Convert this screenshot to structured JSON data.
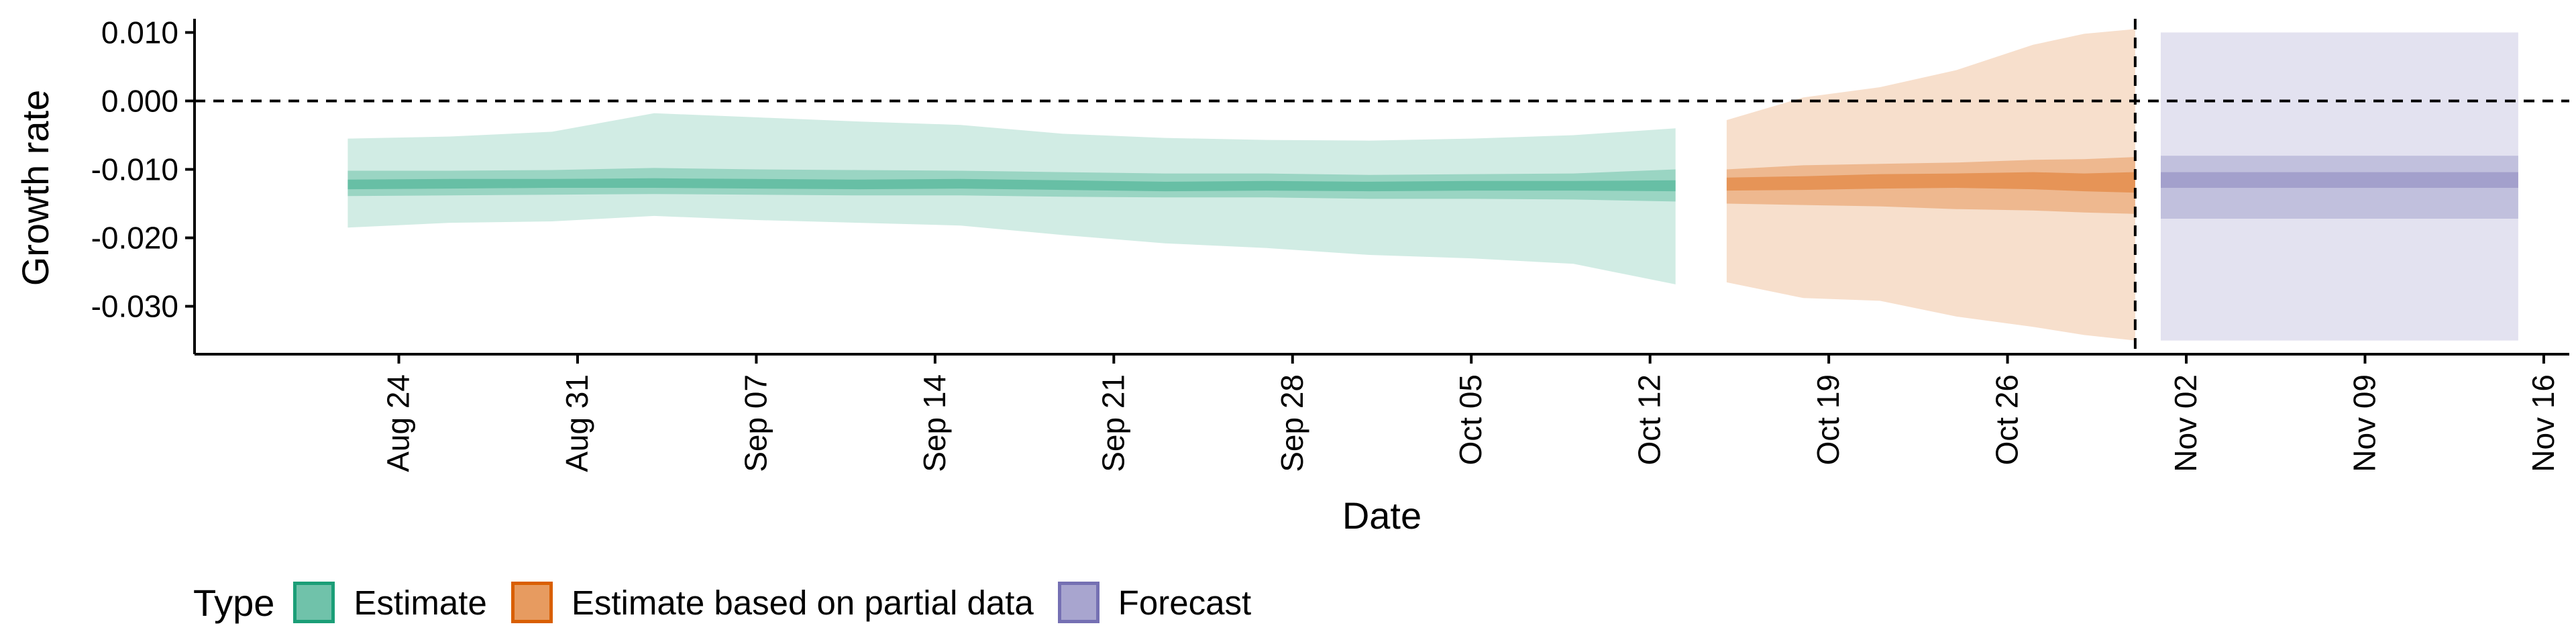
{
  "chart_data": {
    "type": "area",
    "title": "",
    "xlabel": "Date",
    "ylabel": "Growth rate",
    "x_range": [
      "2021-08-16",
      "2021-11-17"
    ],
    "ylim": [
      -0.037,
      0.012
    ],
    "y_ticks": [
      -0.03,
      -0.02,
      -0.01,
      0.0,
      0.01
    ],
    "y_tick_labels": [
      "-0.030",
      "-0.020",
      "-0.010",
      "0.000",
      "0.010"
    ],
    "x_ticks": [
      "2021-08-24",
      "2021-08-31",
      "2021-09-07",
      "2021-09-14",
      "2021-09-21",
      "2021-09-28",
      "2021-10-05",
      "2021-10-12",
      "2021-10-19",
      "2021-10-26",
      "2021-11-02",
      "2021-11-09",
      "2021-11-16"
    ],
    "x_tick_labels": [
      "Aug 24",
      "Aug 31",
      "Sep 07",
      "Sep 14",
      "Sep 21",
      "Sep 28",
      "Oct 05",
      "Oct 12",
      "Oct 19",
      "Oct 26",
      "Nov 02",
      "Nov 09",
      "Nov 16"
    ],
    "reference_lines": [
      {
        "axis": "y",
        "value": 0.0,
        "style": "dashed"
      },
      {
        "axis": "x",
        "value": "2021-10-31",
        "style": "dashed"
      }
    ],
    "grid": false,
    "legend": {
      "title": "Type",
      "position": "bottom-left",
      "items": [
        {
          "label": "Estimate",
          "color": "#1b9e77"
        },
        {
          "label": "Estimate based on partial data",
          "color": "#d95f02"
        },
        {
          "label": "Forecast",
          "color": "#7570b3"
        }
      ]
    },
    "series": [
      {
        "name": "Estimate",
        "color": "#1b9e77",
        "points": [
          {
            "x": "2021-08-22",
            "median": -0.0122,
            "lo90": -0.0185,
            "hi90": -0.0055,
            "lo50": -0.0139,
            "hi50": -0.0102,
            "lo20": -0.0129,
            "hi20": -0.0115
          },
          {
            "x": "2021-08-26",
            "median": -0.0122,
            "lo90": -0.0178,
            "hi90": -0.0052,
            "lo50": -0.0138,
            "hi50": -0.0102,
            "lo20": -0.0128,
            "hi20": -0.0114
          },
          {
            "x": "2021-08-30",
            "median": -0.0121,
            "lo90": -0.0176,
            "hi90": -0.0045,
            "lo50": -0.0137,
            "hi50": -0.0101,
            "lo20": -0.0127,
            "hi20": -0.0114
          },
          {
            "x": "2021-09-03",
            "median": -0.012,
            "lo90": -0.0168,
            "hi90": -0.0018,
            "lo50": -0.0136,
            "hi50": -0.0098,
            "lo20": -0.0127,
            "hi20": -0.0113
          },
          {
            "x": "2021-09-07",
            "median": -0.0121,
            "lo90": -0.0174,
            "hi90": -0.0024,
            "lo50": -0.0137,
            "hi50": -0.01,
            "lo20": -0.0128,
            "hi20": -0.0114
          },
          {
            "x": "2021-09-11",
            "median": -0.0122,
            "lo90": -0.0178,
            "hi90": -0.003,
            "lo50": -0.0138,
            "hi50": -0.0101,
            "lo20": -0.0129,
            "hi20": -0.0115
          },
          {
            "x": "2021-09-15",
            "median": -0.0121,
            "lo90": -0.0182,
            "hi90": -0.0035,
            "lo50": -0.0138,
            "hi50": -0.0102,
            "lo20": -0.0128,
            "hi20": -0.0114
          },
          {
            "x": "2021-09-19",
            "median": -0.0123,
            "lo90": -0.0196,
            "hi90": -0.0048,
            "lo50": -0.014,
            "hi50": -0.0104,
            "lo20": -0.013,
            "hi20": -0.0116
          },
          {
            "x": "2021-09-23",
            "median": -0.0125,
            "lo90": -0.0208,
            "hi90": -0.0054,
            "lo50": -0.0141,
            "hi50": -0.0106,
            "lo20": -0.0132,
            "hi20": -0.0118
          },
          {
            "x": "2021-09-27",
            "median": -0.0124,
            "lo90": -0.0215,
            "hi90": -0.0057,
            "lo50": -0.0141,
            "hi50": -0.0106,
            "lo20": -0.0131,
            "hi20": -0.0117
          },
          {
            "x": "2021-10-01",
            "median": -0.0125,
            "lo90": -0.0225,
            "hi90": -0.0058,
            "lo50": -0.0143,
            "hi50": -0.0108,
            "lo20": -0.0132,
            "hi20": -0.0118
          },
          {
            "x": "2021-10-05",
            "median": -0.0124,
            "lo90": -0.023,
            "hi90": -0.0055,
            "lo50": -0.0143,
            "hi50": -0.0107,
            "lo20": -0.0131,
            "hi20": -0.0117
          },
          {
            "x": "2021-10-09",
            "median": -0.0124,
            "lo90": -0.0238,
            "hi90": -0.005,
            "lo50": -0.0144,
            "hi50": -0.0106,
            "lo20": -0.0131,
            "hi20": -0.0117
          },
          {
            "x": "2021-10-13",
            "median": -0.0124,
            "lo90": -0.0268,
            "hi90": -0.004,
            "lo50": -0.0147,
            "hi50": -0.01,
            "lo20": -0.0132,
            "hi20": -0.0116
          }
        ]
      },
      {
        "name": "Estimate based on partial data",
        "color": "#d95f02",
        "points": [
          {
            "x": "2021-10-15",
            "median": -0.0122,
            "lo90": -0.0265,
            "hi90": -0.0028,
            "lo50": -0.015,
            "hi50": -0.01,
            "lo20": -0.0131,
            "hi20": -0.0112
          },
          {
            "x": "2021-10-18",
            "median": -0.012,
            "lo90": -0.0288,
            "hi90": 0.0005,
            "lo50": -0.0152,
            "hi50": -0.0094,
            "lo20": -0.013,
            "hi20": -0.011
          },
          {
            "x": "2021-10-21",
            "median": -0.0118,
            "lo90": -0.0292,
            "hi90": 0.002,
            "lo50": -0.0154,
            "hi50": -0.0092,
            "lo20": -0.0128,
            "hi20": -0.0107
          },
          {
            "x": "2021-10-24",
            "median": -0.0117,
            "lo90": -0.0315,
            "hi90": 0.0045,
            "lo50": -0.0158,
            "hi50": -0.009,
            "lo20": -0.0127,
            "hi20": -0.0106
          },
          {
            "x": "2021-10-27",
            "median": -0.0118,
            "lo90": -0.033,
            "hi90": 0.0082,
            "lo50": -0.016,
            "hi50": -0.0086,
            "lo20": -0.0129,
            "hi20": -0.0104
          },
          {
            "x": "2021-10-29",
            "median": -0.0121,
            "lo90": -0.0342,
            "hi90": 0.0098,
            "lo50": -0.0163,
            "hi50": -0.0085,
            "lo20": -0.0132,
            "hi20": -0.0106
          },
          {
            "x": "2021-10-31",
            "median": -0.012,
            "lo90": -0.035,
            "hi90": 0.0105,
            "lo50": -0.0165,
            "hi50": -0.0082,
            "lo20": -0.0134,
            "hi20": -0.0104
          }
        ]
      },
      {
        "name": "Forecast",
        "color": "#7570b3",
        "points": [
          {
            "x": "2021-11-01",
            "median": -0.0116,
            "lo90": -0.035,
            "hi90": 0.01,
            "lo50": -0.0172,
            "hi50": -0.008,
            "lo20": -0.0127,
            "hi20": -0.0104
          },
          {
            "x": "2021-11-15",
            "median": -0.0116,
            "lo90": -0.035,
            "hi90": 0.01,
            "lo50": -0.0172,
            "hi50": -0.008,
            "lo20": -0.0127,
            "hi20": -0.0104
          }
        ]
      }
    ]
  }
}
